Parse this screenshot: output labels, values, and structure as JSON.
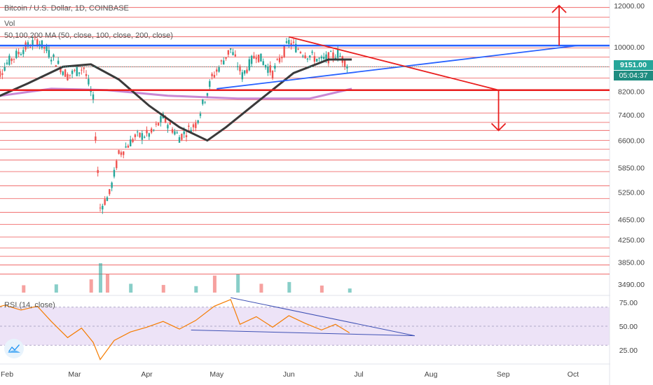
{
  "header": {
    "title": "Bitcoin / U.S. Dollar, 1D, COINBASE",
    "vol_label": "Vol",
    "ma_label": "50,100,200 MA (50, close, 100, close, 200, close)",
    "rsi_label": "RSI (14, close)"
  },
  "price_tags": {
    "last_price": "9151.00",
    "countdown": "05:04:37"
  },
  "colors": {
    "up": "#26a69a",
    "down": "#ef5350",
    "support": "#2962ff",
    "resistance": "#e91e1e",
    "ma_black": "#3a3a3a",
    "ma_purple": "#9c27b0",
    "rsi_line": "#f57c00",
    "rsi_bg": "#ede3f7"
  },
  "icons": [
    "tradingview-logo-icon",
    "arrow-up-icon",
    "arrow-down-icon"
  ],
  "chart_data": {
    "type": "candlestick",
    "title": "Bitcoin / U.S. Dollar, 1D, COINBASE",
    "price_axis": {
      "scale": "log",
      "ticks": [
        12000,
        10000,
        8200,
        7400,
        6600,
        5850,
        5250,
        4650,
        4250,
        3850,
        3490
      ],
      "tick_labels": [
        "12000.00",
        "10000.00",
        "8200.00",
        "7400.00",
        "6600.00",
        "5850.00",
        "5250.00",
        "4650.00",
        "4250.00",
        "3850.00",
        "3490.00"
      ]
    },
    "time_axis": {
      "labels": [
        "Feb",
        "Mar",
        "Apr",
        "May",
        "Jun",
        "Jul",
        "Aug",
        "Sep",
        "Oct"
      ],
      "months": [
        "2020-02",
        "2020-03",
        "2020-04",
        "2020-05",
        "2020-06",
        "2020-07",
        "2020-08",
        "2020-09",
        "2020-10"
      ]
    },
    "last_price": 9151,
    "horizontal_levels": [
      12400,
      11900,
      11400,
      10900,
      10450,
      9950,
      9550,
      9150,
      8700,
      8250,
      7900,
      7450,
      7150,
      6900,
      6600,
      6350,
      6050,
      5750,
      5400,
      5100,
      4800,
      4550,
      4300,
      4100,
      3950,
      3800,
      3650
    ],
    "key_levels": {
      "resistance": 10050,
      "support": 8250
    },
    "trendlines": [
      {
        "name": "rising",
        "from": [
          "2020-05-01",
          8300
        ],
        "to": [
          "2020-10-03",
          10050
        ]
      },
      {
        "name": "falling",
        "from": [
          "2020-06-01",
          10450
        ],
        "to": [
          "2020-08-30",
          8250
        ]
      }
    ],
    "arrows": [
      {
        "direction": "up",
        "date": "2020-09-25",
        "from": 10050,
        "to": 12000
      },
      {
        "direction": "down",
        "date": "2020-08-30",
        "from": 8250,
        "to": 6900
      }
    ],
    "close_series": [
      {
        "date": "2020-01-25",
        "close": 8400
      },
      {
        "date": "2020-02-01",
        "close": 9300
      },
      {
        "date": "2020-02-08",
        "close": 9900
      },
      {
        "date": "2020-02-14",
        "close": 10300
      },
      {
        "date": "2020-02-20",
        "close": 9600
      },
      {
        "date": "2020-02-27",
        "close": 8800
      },
      {
        "date": "2020-03-05",
        "close": 9100
      },
      {
        "date": "2020-03-09",
        "close": 7900
      },
      {
        "date": "2020-03-12",
        "close": 4900
      },
      {
        "date": "2020-03-16",
        "close": 5200
      },
      {
        "date": "2020-03-20",
        "close": 6200
      },
      {
        "date": "2020-03-27",
        "close": 6700
      },
      {
        "date": "2020-04-03",
        "close": 6800
      },
      {
        "date": "2020-04-08",
        "close": 7300
      },
      {
        "date": "2020-04-15",
        "close": 6700
      },
      {
        "date": "2020-04-22",
        "close": 7100
      },
      {
        "date": "2020-04-29",
        "close": 8700
      },
      {
        "date": "2020-05-07",
        "close": 9900
      },
      {
        "date": "2020-05-12",
        "close": 8800
      },
      {
        "date": "2020-05-18",
        "close": 9700
      },
      {
        "date": "2020-05-25",
        "close": 8900
      },
      {
        "date": "2020-06-01",
        "close": 10200
      },
      {
        "date": "2020-06-08",
        "close": 9700
      },
      {
        "date": "2020-06-15",
        "close": 9400
      },
      {
        "date": "2020-06-22",
        "close": 9700
      },
      {
        "date": "2020-06-27",
        "close": 9150
      }
    ],
    "ma_black": [
      {
        "date": "2020-01-25",
        "value": 7900
      },
      {
        "date": "2020-02-10",
        "value": 8500
      },
      {
        "date": "2020-02-25",
        "value": 9150
      },
      {
        "date": "2020-03-08",
        "value": 9250
      },
      {
        "date": "2020-03-20",
        "value": 8650
      },
      {
        "date": "2020-04-02",
        "value": 7700
      },
      {
        "date": "2020-04-15",
        "value": 7000
      },
      {
        "date": "2020-04-27",
        "value": 6600
      },
      {
        "date": "2020-05-05",
        "value": 7000
      },
      {
        "date": "2020-05-18",
        "value": 7800
      },
      {
        "date": "2020-06-03",
        "value": 8900
      },
      {
        "date": "2020-06-18",
        "value": 9450
      },
      {
        "date": "2020-06-28",
        "value": 9450
      }
    ],
    "ma_purple": [
      {
        "date": "2020-01-25",
        "value": 8000
      },
      {
        "date": "2020-02-20",
        "value": 8300
      },
      {
        "date": "2020-03-15",
        "value": 8250
      },
      {
        "date": "2020-04-10",
        "value": 8050
      },
      {
        "date": "2020-05-10",
        "value": 7950
      },
      {
        "date": "2020-06-10",
        "value": 7950
      },
      {
        "date": "2020-06-28",
        "value": 8300
      }
    ],
    "rsi": {
      "label": "RSI (14, close)",
      "ticks": [
        75,
        50,
        25
      ],
      "tick_labels": [
        "75.00",
        "50.00",
        "25.00"
      ],
      "band": [
        30,
        70
      ],
      "series": [
        {
          "date": "2020-01-25",
          "value": 68
        },
        {
          "date": "2020-01-31",
          "value": 72
        },
        {
          "date": "2020-02-07",
          "value": 67
        },
        {
          "date": "2020-02-14",
          "value": 71
        },
        {
          "date": "2020-02-20",
          "value": 55
        },
        {
          "date": "2020-02-27",
          "value": 38
        },
        {
          "date": "2020-03-04",
          "value": 48
        },
        {
          "date": "2020-03-09",
          "value": 33
        },
        {
          "date": "2020-03-12",
          "value": 15
        },
        {
          "date": "2020-03-18",
          "value": 35
        },
        {
          "date": "2020-03-25",
          "value": 44
        },
        {
          "date": "2020-04-01",
          "value": 49
        },
        {
          "date": "2020-04-08",
          "value": 55
        },
        {
          "date": "2020-04-15",
          "value": 47
        },
        {
          "date": "2020-04-22",
          "value": 56
        },
        {
          "date": "2020-04-30",
          "value": 71
        },
        {
          "date": "2020-05-07",
          "value": 78
        },
        {
          "date": "2020-05-11",
          "value": 52
        },
        {
          "date": "2020-05-18",
          "value": 60
        },
        {
          "date": "2020-05-25",
          "value": 49
        },
        {
          "date": "2020-06-01",
          "value": 61
        },
        {
          "date": "2020-06-08",
          "value": 53
        },
        {
          "date": "2020-06-15",
          "value": 46
        },
        {
          "date": "2020-06-21",
          "value": 52
        },
        {
          "date": "2020-06-27",
          "value": 43
        }
      ],
      "trendlines": [
        {
          "from": [
            "2020-05-07",
            80
          ],
          "to": [
            "2020-07-25",
            40
          ]
        },
        {
          "from": [
            "2020-04-20",
            46
          ],
          "to": [
            "2020-07-25",
            40
          ]
        }
      ]
    },
    "volume": [
      {
        "date": "2020-01-25",
        "value": 20
      },
      {
        "date": "2020-02-08",
        "value": 25
      },
      {
        "date": "2020-02-22",
        "value": 28
      },
      {
        "date": "2020-03-08",
        "value": 45
      },
      {
        "date": "2020-03-12",
        "value": 100
      },
      {
        "date": "2020-03-15",
        "value": 62
      },
      {
        "date": "2020-03-25",
        "value": 30
      },
      {
        "date": "2020-04-08",
        "value": 26
      },
      {
        "date": "2020-04-22",
        "value": 22
      },
      {
        "date": "2020-04-30",
        "value": 58
      },
      {
        "date": "2020-05-10",
        "value": 62
      },
      {
        "date": "2020-05-20",
        "value": 30
      },
      {
        "date": "2020-06-01",
        "value": 36
      },
      {
        "date": "2020-06-15",
        "value": 24
      },
      {
        "date": "2020-06-27",
        "value": 14
      }
    ]
  }
}
